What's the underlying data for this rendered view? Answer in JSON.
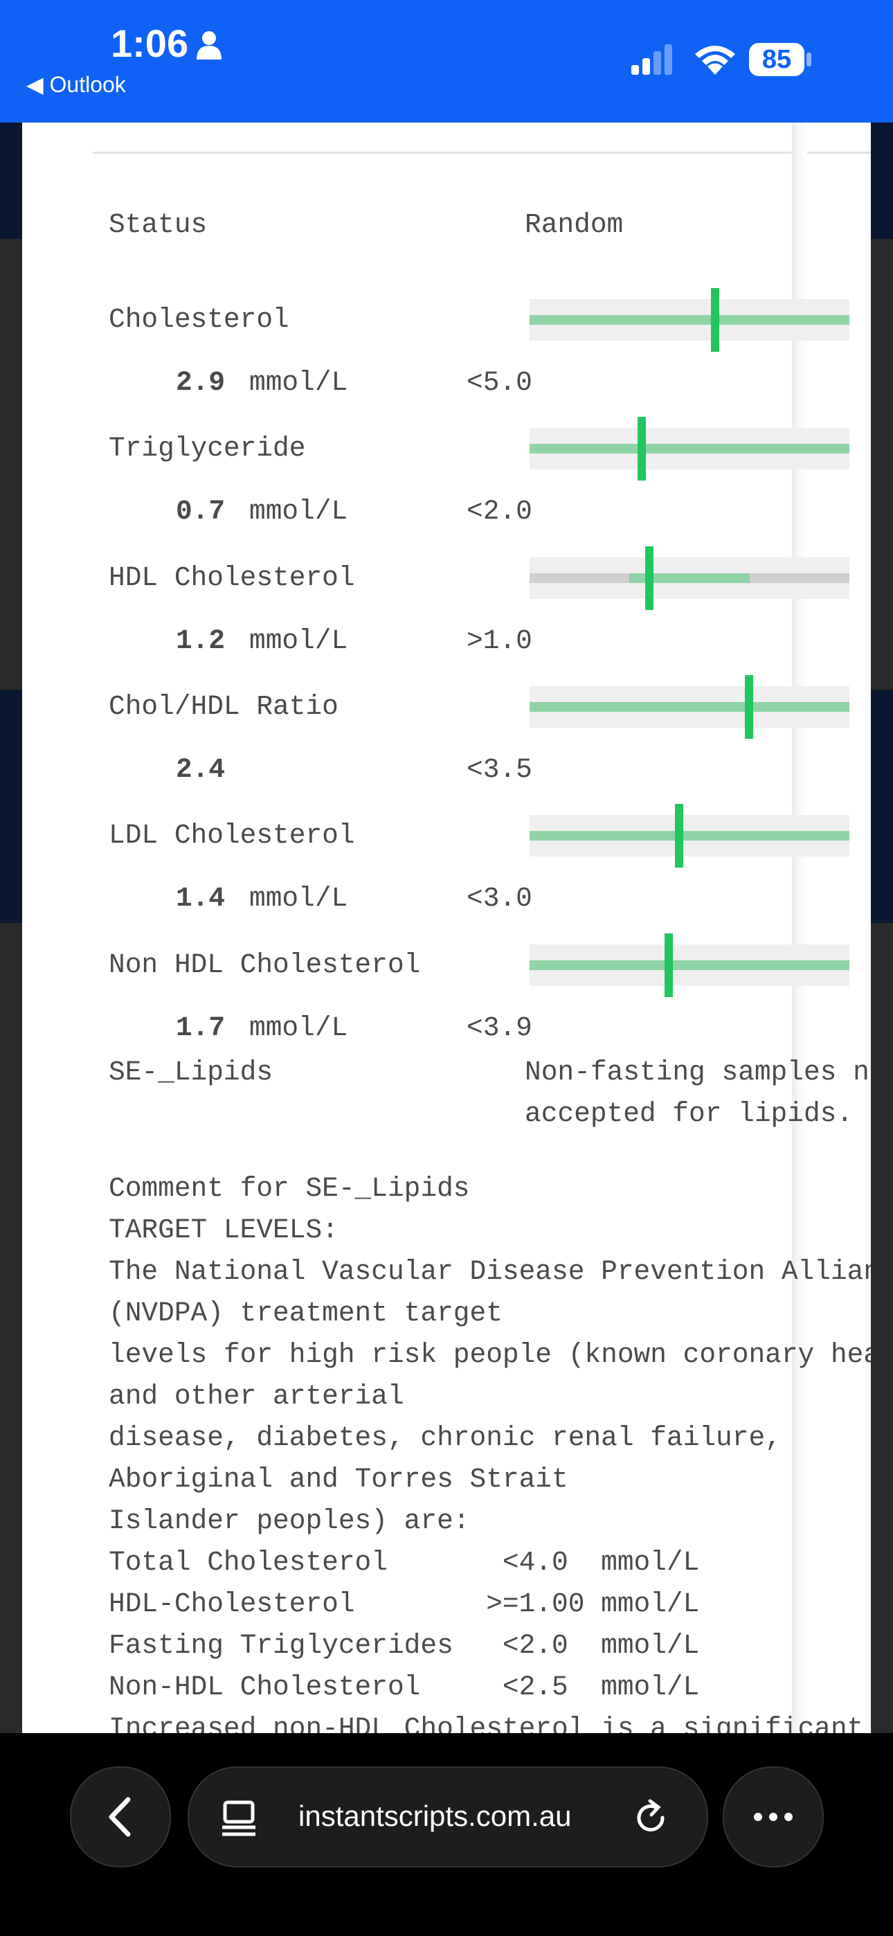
{
  "status_bar": {
    "time": "1:06",
    "back_label": "Outlook",
    "battery": "85"
  },
  "report": {
    "header": {
      "label": "Status",
      "value": "Random"
    },
    "results": [
      {
        "name": "Cholesterol",
        "value": 2.9,
        "unit": "mmol/L",
        "reference": "<5.0"
      },
      {
        "name": "Triglyceride",
        "value": 0.7,
        "unit": "mmol/L",
        "reference": "<2.0"
      },
      {
        "name": "HDL Cholesterol",
        "value": 1.2,
        "unit": "mmol/L",
        "reference": ">1.0"
      },
      {
        "name": "Chol/HDL Ratio",
        "value": 2.4,
        "reference": "<3.5"
      },
      {
        "name": "LDL Cholesterol",
        "value": 1.4,
        "unit": "mmol/L",
        "reference": "<3.0"
      },
      {
        "name": "Non HDL Cholesterol",
        "value": 1.7,
        "unit": "mmol/L",
        "reference": "<3.9"
      }
    ],
    "note": {
      "label": "SE-_Lipids",
      "lines": [
        "Non-fasting samples n",
        "accepted for lipids."
      ]
    },
    "comment": {
      "lines": [
        "Comment for SE-_Lipids",
        "TARGET LEVELS:",
        "The National Vascular Disease Prevention Allian",
        "(NVDPA) treatment target",
        "levels for high risk people (known coronary hea",
        "and other arterial",
        "disease, diabetes, chronic renal failure,",
        "Aboriginal and Torres Strait",
        "Islander peoples) are:",
        "Total Cholesterol       <4.0  mmol/L",
        "HDL-Cholesterol        >=1.00 mmol/L",
        "Fasting Triglycerides   <2.0  mmol/L",
        "Non-HDL Cholesterol     <2.5  mmol/L",
        "Increased non-HDL Cholesterol is a significant"
      ]
    }
  },
  "browser": {
    "url": "instantscripts.com.au"
  }
}
